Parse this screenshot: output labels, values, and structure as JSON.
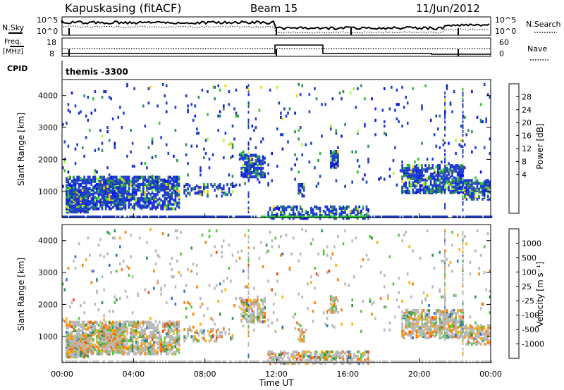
{
  "header": {
    "radar": "Kapuskasing (fitACF)",
    "beam": "Beam 15",
    "date": "11/Jun/2012"
  },
  "summary_panel": {
    "nsky_label": "N.Sky",
    "nsearch_label": "N.Search",
    "freq_label_1": "Freq.",
    "freq_label_2": "[MHz]",
    "nave_label": "Nave",
    "cpid_label": "CPID",
    "noise_left_ticks": [
      "10^5",
      "10^0"
    ],
    "noise_right_ticks": [
      "10^5",
      "10^0"
    ],
    "freq_left_ticks": [
      "18",
      "8"
    ],
    "freq_right_ticks": [
      "60",
      "0"
    ],
    "cpid_text": "themis -3300"
  },
  "chart_data": [
    {
      "type": "heatmap",
      "name": "power",
      "ylabel": "Slant Range [km]",
      "yticks": [
        "1000",
        "2000",
        "3000",
        "4000"
      ],
      "ylim": [
        180,
        4500
      ],
      "xlim_hours": [
        0,
        24
      ],
      "colorbar_label": "Power [dB]",
      "colorbar_ticks": [
        "28",
        "24",
        "20",
        "16",
        "12",
        "8",
        "4"
      ],
      "colorbar_colors": [
        "#ff0000",
        "#ff6400",
        "#ffa000",
        "#ffd200",
        "#a0ff28",
        "#28c832",
        "#2f8f4e",
        "#1e50c8",
        "#0a14e6",
        "#0000ff"
      ]
    },
    {
      "type": "heatmap",
      "name": "velocity",
      "ylabel": "Slant Range [km]",
      "yticks": [
        "1000",
        "2000",
        "3000",
        "4000"
      ],
      "ylim": [
        180,
        4500
      ],
      "xlim_hours": [
        0,
        24
      ],
      "xlabel": "Time UT",
      "xticks": [
        "00:00",
        "04:00",
        "08:00",
        "12:00",
        "16:00",
        "20:00",
        "00:00"
      ],
      "colorbar_label": "Velocity [m s⁻¹]",
      "colorbar_ticks": [
        "1000",
        "500",
        "100",
        "25",
        "-25",
        "-100",
        "-500",
        "-1000"
      ],
      "colorbar_colors": [
        "#1a3fbf",
        "#2f6fd0",
        "#2f8f4e",
        "#4fc83a",
        "#b8b8b8",
        "#ffb000",
        "#ff8000",
        "#ff4000",
        "#ff0000"
      ]
    }
  ]
}
